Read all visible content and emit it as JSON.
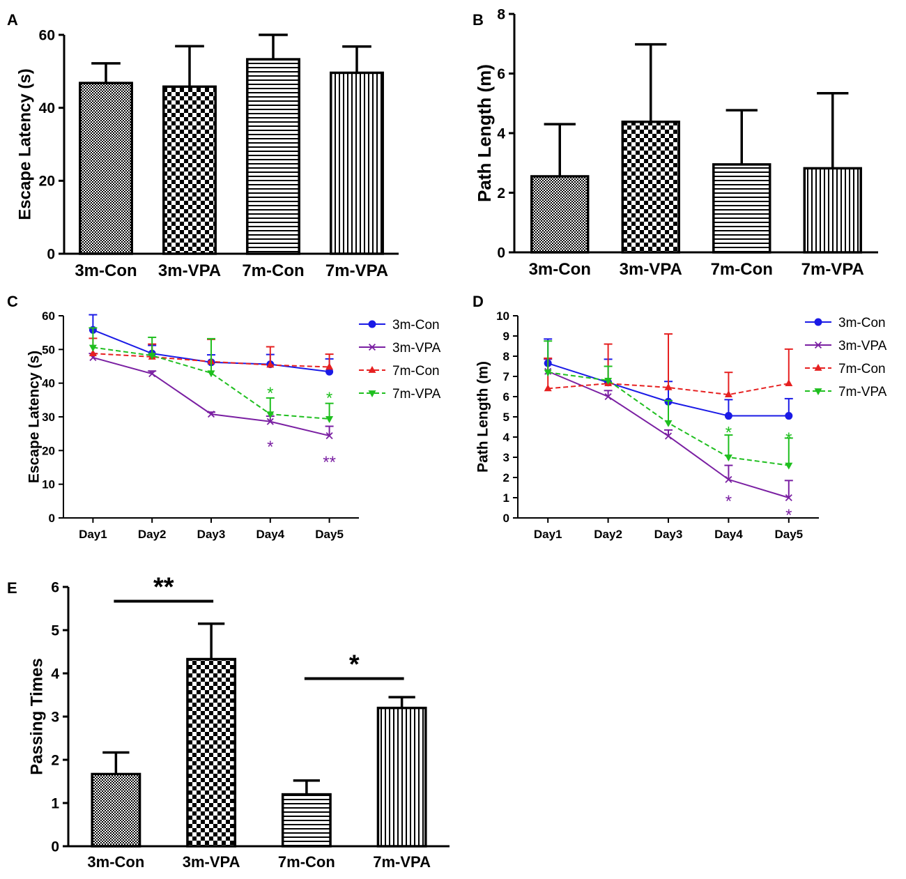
{
  "chart_data": [
    {
      "panel": "A",
      "type": "bar",
      "ylabel": "Escape Latency (s)",
      "ylim": [
        0,
        60
      ],
      "yticks": [
        0,
        20,
        40,
        60
      ],
      "categories": [
        "3m-Con",
        "3m-VPA",
        "7m-Con",
        "7m-VPA"
      ],
      "values": [
        46.8,
        45.8,
        53.3,
        49.6
      ],
      "errors": [
        5.4,
        11.1,
        6.7,
        7.2
      ],
      "patterns": [
        "dots",
        "checker",
        "hlines",
        "vlines"
      ]
    },
    {
      "panel": "B",
      "type": "bar",
      "ylabel": "Path Length (m)",
      "ylim": [
        0,
        8
      ],
      "yticks": [
        0,
        2,
        4,
        6,
        8
      ],
      "categories": [
        "3m-Con",
        "3m-VPA",
        "7m-Con",
        "7m-VPA"
      ],
      "values": [
        2.55,
        4.38,
        2.95,
        2.82
      ],
      "errors": [
        1.75,
        2.6,
        1.82,
        2.52
      ],
      "patterns": [
        "dots",
        "checker",
        "hlines",
        "vlines"
      ]
    },
    {
      "panel": "C",
      "type": "line",
      "ylabel": "Escape Latency (s)",
      "ylim": [
        0,
        60
      ],
      "yticks": [
        0,
        10,
        20,
        30,
        40,
        50,
        60
      ],
      "categories": [
        "Day1",
        "Day2",
        "Day3",
        "Day4",
        "Day5"
      ],
      "series": [
        {
          "name": "3m-Con",
          "color": "#1a1ae6",
          "dash": false,
          "marker": "circle",
          "values": [
            55.8,
            48.8,
            46.2,
            45.6,
            43.4
          ],
          "errors": [
            4.5,
            2.4,
            2.2,
            2.9,
            3.8
          ]
        },
        {
          "name": "3m-VPA",
          "color": "#7a1fa2",
          "dash": false,
          "marker": "x",
          "values": [
            47.6,
            42.8,
            30.8,
            28.6,
            24.4
          ],
          "errors": [
            1.2,
            0.8,
            0.6,
            1.6,
            2.8
          ]
        },
        {
          "name": "7m-Con",
          "color": "#e62020",
          "dash": true,
          "marker": "triangle-up",
          "values": [
            48.8,
            47.8,
            46.4,
            45.4,
            44.8
          ],
          "errors": [
            4.5,
            3.8,
            6.6,
            5.4,
            3.8
          ]
        },
        {
          "name": "7m-VPA",
          "color": "#1fbf1f",
          "dash": true,
          "marker": "triangle-down",
          "values": [
            50.6,
            48.2,
            43.0,
            30.8,
            29.4
          ],
          "errors": [
            5.8,
            5.4,
            10.2,
            4.8,
            4.6
          ]
        }
      ],
      "annotations": [
        {
          "text": "*",
          "color": "#1fbf1f",
          "category": "Day4",
          "value": 37.5
        },
        {
          "text": "*",
          "color": "#1fbf1f",
          "category": "Day5",
          "value": 36.0
        },
        {
          "text": "*",
          "color": "#7a1fa2",
          "category": "Day4",
          "value": 21.5
        },
        {
          "text": "**",
          "color": "#7a1fa2",
          "category": "Day5",
          "value": 17.0
        }
      ]
    },
    {
      "panel": "D",
      "type": "line",
      "ylabel": "Path Length (m)",
      "ylim": [
        0,
        10
      ],
      "yticks": [
        0,
        1,
        2,
        3,
        4,
        5,
        6,
        7,
        8,
        9,
        10
      ],
      "categories": [
        "Day1",
        "Day2",
        "Day3",
        "Day4",
        "Day5"
      ],
      "series": [
        {
          "name": "3m-Con",
          "color": "#1a1ae6",
          "dash": false,
          "marker": "circle",
          "values": [
            7.65,
            6.7,
            5.75,
            5.05,
            5.05
          ],
          "errors": [
            1.2,
            1.15,
            1.0,
            0.8,
            0.85
          ]
        },
        {
          "name": "3m-VPA",
          "color": "#7a1fa2",
          "dash": false,
          "marker": "x",
          "values": [
            7.25,
            6.0,
            4.05,
            1.9,
            1.0
          ],
          "errors": [
            0.6,
            0.3,
            0.3,
            0.7,
            0.85
          ]
        },
        {
          "name": "7m-Con",
          "color": "#e62020",
          "dash": true,
          "marker": "triangle-up",
          "values": [
            6.4,
            6.65,
            6.45,
            6.1,
            6.65
          ],
          "errors": [
            1.5,
            1.95,
            2.65,
            1.1,
            1.7
          ]
        },
        {
          "name": "7m-VPA",
          "color": "#1fbf1f",
          "dash": true,
          "marker": "triangle-down",
          "values": [
            7.2,
            6.8,
            4.7,
            3.0,
            2.6
          ],
          "errors": [
            1.55,
            0.7,
            1.1,
            1.1,
            1.35
          ]
        }
      ],
      "annotations": [
        {
          "text": "*",
          "color": "#1fbf1f",
          "category": "Day4",
          "value": 4.3
        },
        {
          "text": "*",
          "color": "#1fbf1f",
          "category": "Day5",
          "value": 4.0
        },
        {
          "text": "*",
          "color": "#7a1fa2",
          "category": "Day4",
          "value": 0.9
        },
        {
          "text": "*",
          "color": "#7a1fa2",
          "category": "Day5",
          "value": 0.2
        }
      ]
    },
    {
      "panel": "E",
      "type": "bar",
      "ylabel": "Passing Times",
      "ylim": [
        0,
        6
      ],
      "yticks": [
        0,
        1,
        2,
        3,
        4,
        5,
        6
      ],
      "categories": [
        "3m-Con",
        "3m-VPA",
        "7m-Con",
        "7m-VPA"
      ],
      "values": [
        1.67,
        4.33,
        1.2,
        3.2
      ],
      "errors": [
        0.5,
        0.82,
        0.32,
        0.25
      ],
      "patterns": [
        "dots",
        "checker",
        "hlines",
        "vlines"
      ],
      "significance": [
        {
          "from": "3m-Con",
          "to": "3m-VPA",
          "label": "**",
          "level": 5.67
        },
        {
          "from": "7m-Con",
          "to": "7m-VPA",
          "label": "*",
          "level": 3.88
        }
      ]
    }
  ]
}
